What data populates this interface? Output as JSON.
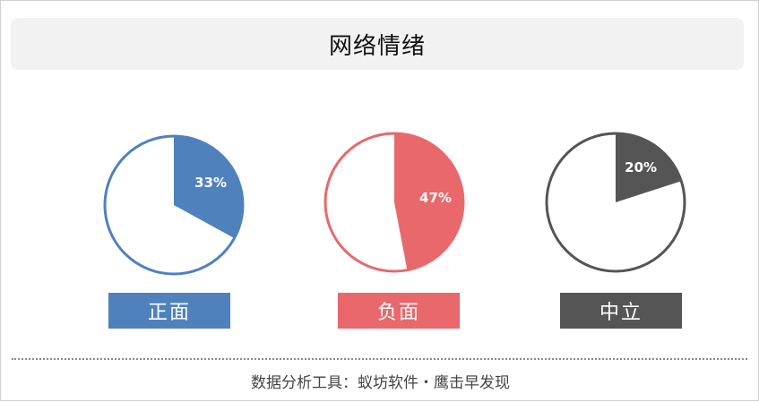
{
  "header": {
    "title": "网络情绪"
  },
  "chart_data": {
    "type": "pie",
    "title": "网络情绪",
    "slices": [
      {
        "label": "正面",
        "value": 33,
        "value_label": "33%",
        "color": "#4f81bd"
      },
      {
        "label": "负面",
        "value": 47,
        "value_label": "47%",
        "color": "#e8686b"
      },
      {
        "label": "中立",
        "value": 20,
        "value_label": "20%",
        "color": "#555555"
      }
    ]
  },
  "footer": {
    "text": "数据分析工具：蚁坊软件・鹰击早发现"
  }
}
